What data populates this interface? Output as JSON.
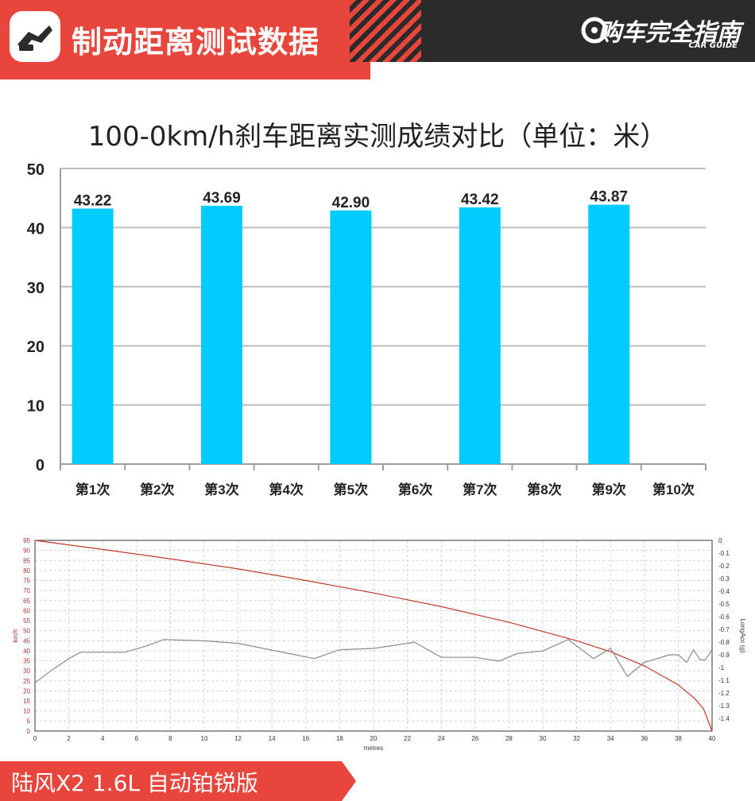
{
  "header": {
    "title": "制动距离测试数据",
    "brand": "购车完全指南",
    "brand_sub": "CAR GUIDE"
  },
  "footer": {
    "car_name": "陆风X2 1.6L 自动铂锐版"
  },
  "colors": {
    "accent": "#e8453c",
    "dark": "#2b2b2b",
    "bar": "#00ccff",
    "speed_line": "#c0392b",
    "acc_line": "#8a8a8a"
  },
  "chart_data": [
    {
      "type": "bar",
      "title": "100-0km/h刹车距离实测成绩对比（单位：米）",
      "categories": [
        "第1次",
        "第2次",
        "第3次",
        "第4次",
        "第5次",
        "第6次",
        "第7次",
        "第8次",
        "第9次",
        "第10次"
      ],
      "values": [
        43.22,
        null,
        43.69,
        null,
        42.9,
        null,
        43.42,
        null,
        43.87,
        null
      ],
      "labels": [
        "43.22",
        "",
        "43.69",
        "",
        "42.90",
        "",
        "43.42",
        "",
        "43.87",
        ""
      ],
      "ylim": [
        0,
        50
      ],
      "yticks": [
        0,
        10,
        20,
        30,
        40,
        50
      ],
      "grid": true
    },
    {
      "type": "line",
      "xlabel": "metres",
      "ylabel": "km/h",
      "ylabel_right": "LongAcc (g)",
      "xlim": [
        0,
        40
      ],
      "ylim": [
        0,
        95
      ],
      "ylim_right": [
        -1.5,
        0
      ],
      "xticks": [
        0,
        2,
        4,
        6,
        8,
        10,
        12,
        14,
        16,
        18,
        20,
        22,
        24,
        26,
        28,
        30,
        32,
        34,
        36,
        38,
        40
      ],
      "yticks": [
        0,
        5,
        10,
        15,
        20,
        25,
        30,
        35,
        40,
        45,
        50,
        55,
        60,
        65,
        70,
        75,
        80,
        85,
        90,
        95
      ],
      "yticks_right": [
        "0",
        "-0.1",
        "-0.2",
        "-0.3",
        "-0.4",
        "-0.5",
        "-0.6",
        "-0.7",
        "-0.8",
        "-0.9",
        "-1",
        "-1.1",
        "-1.2",
        "-1.3",
        "-1.4"
      ],
      "grid": true,
      "series": [
        {
          "axis": "left",
          "x": [
            0,
            4,
            8,
            12,
            16,
            20,
            24,
            28,
            32,
            34,
            36,
            38,
            39,
            39.5,
            40
          ],
          "y": [
            95,
            90.5,
            85.8,
            80.8,
            75,
            68.8,
            62,
            54.2,
            45,
            39.5,
            32.5,
            23,
            16,
            11,
            0
          ]
        },
        {
          "axis": "right",
          "x": [
            0,
            1,
            2,
            2.7,
            5,
            5.3,
            6.6,
            7.6,
            10,
            12,
            13.5,
            16.5,
            18,
            20,
            22,
            22.4,
            24,
            26,
            27.4,
            28.5,
            30,
            31.5,
            33,
            34,
            35,
            36,
            37.5,
            38,
            38.5,
            38.9,
            39.3,
            39.6,
            40
          ],
          "y": [
            -1.12,
            -1.02,
            -0.93,
            -0.88,
            -0.88,
            -0.88,
            -0.83,
            -0.78,
            -0.79,
            -0.81,
            -0.85,
            -0.93,
            -0.86,
            -0.85,
            -0.81,
            -0.8,
            -0.92,
            -0.92,
            -0.95,
            -0.89,
            -0.87,
            -0.78,
            -0.93,
            -0.85,
            -1.07,
            -0.96,
            -0.9,
            -0.9,
            -0.96,
            -0.86,
            -0.94,
            -0.94,
            -0.86
          ]
        }
      ]
    }
  ]
}
